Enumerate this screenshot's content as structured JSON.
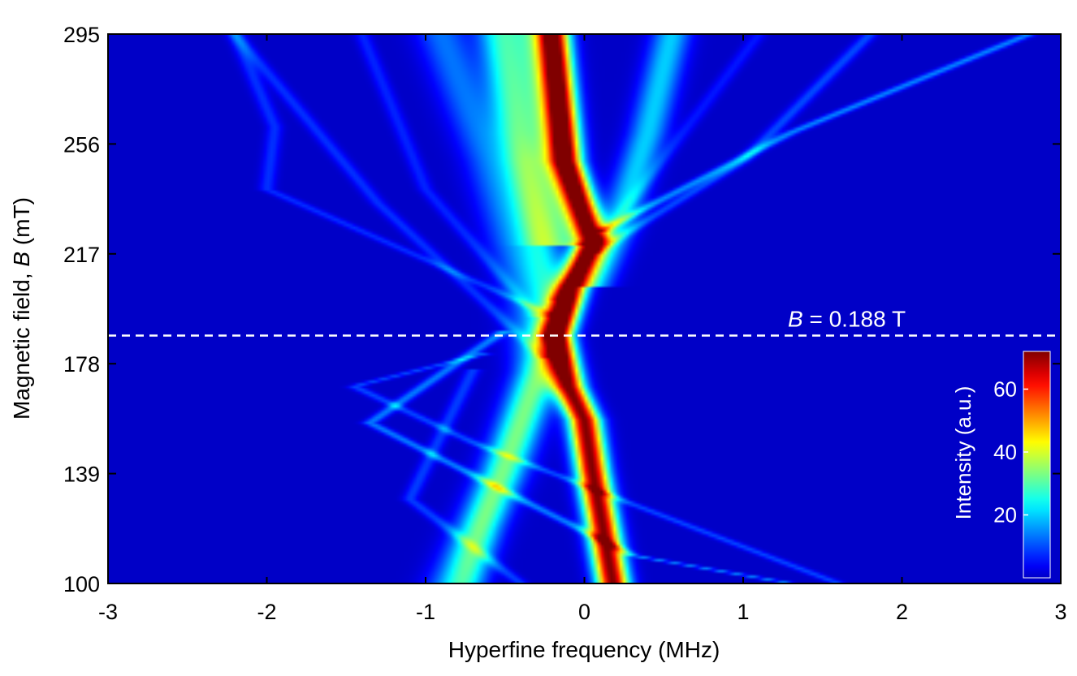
{
  "chart_data": {
    "type": "heatmap",
    "xlabel": "Hyperfine frequency (MHz)",
    "ylabel_prefix": "Magnetic field, ",
    "ylabel_var": "B",
    "ylabel_suffix": " (mT)",
    "xlim": [
      -3,
      3
    ],
    "ylim": [
      100,
      295
    ],
    "x_ticks": [
      -3,
      -2,
      -1,
      0,
      1,
      2,
      3
    ],
    "x_tick_labels": [
      "-3",
      "-2",
      "-1",
      "0",
      "1",
      "2",
      "3"
    ],
    "y_ticks": [
      100,
      139,
      178,
      217,
      256,
      295
    ],
    "y_tick_labels": [
      "100",
      "139",
      "178",
      "217",
      "256",
      "295"
    ],
    "colormap": "jet",
    "colorbar": {
      "label": "Intensity (a.u.)",
      "range": [
        0,
        72
      ],
      "ticks": [
        20,
        40,
        60
      ],
      "tick_labels": [
        "20",
        "40",
        "60"
      ]
    },
    "annotation": {
      "var": "B",
      "text": " = 0.188 T",
      "y_value": 188,
      "line_style": "dashed",
      "color": "#ffffff"
    },
    "background_color": "#00008f",
    "ridges": [
      {
        "points": [
          [
            -0.2,
            295
          ],
          [
            -0.12,
            250
          ],
          [
            0.05,
            222
          ],
          [
            -0.08,
            205
          ],
          [
            -0.18,
            188
          ],
          [
            -0.1,
            170
          ],
          [
            0.0,
            158
          ],
          [
            0.05,
            140
          ],
          [
            0.1,
            125
          ],
          [
            0.18,
            100
          ]
        ],
        "peak": 72,
        "width_mhz": 0.1
      },
      {
        "points": [
          [
            -0.55,
            295
          ],
          [
            -0.45,
            260
          ],
          [
            -0.3,
            225
          ],
          [
            -0.2,
            200
          ],
          [
            -0.25,
            180
          ],
          [
            -0.45,
            150
          ],
          [
            -0.65,
            120
          ],
          [
            -0.75,
            100
          ]
        ],
        "peak": 20,
        "width_mhz": 0.13
      },
      {
        "points": [
          [
            0.55,
            295
          ],
          [
            0.4,
            260
          ],
          [
            0.2,
            225
          ],
          [
            0.05,
            205
          ]
        ],
        "peak": 20,
        "width_mhz": 0.12
      },
      {
        "points": [
          [
            -0.35,
            295
          ],
          [
            -0.25,
            250
          ],
          [
            -0.15,
            220
          ]
        ],
        "peak": 24,
        "width_mhz": 0.18
      },
      {
        "points": [
          [
            -0.9,
            295
          ],
          [
            -0.6,
            250
          ],
          [
            -0.35,
            200
          ],
          [
            -0.3,
            175
          ],
          [
            -0.5,
            140
          ],
          [
            -0.85,
            100
          ]
        ],
        "peak": 13,
        "width_mhz": 0.16
      },
      {
        "points": [
          [
            0.1,
            225
          ],
          [
            1.3,
            260
          ],
          [
            2.8,
            295
          ]
        ],
        "peak": 15,
        "width_mhz": 0.05
      },
      {
        "points": [
          [
            0.05,
            217
          ],
          [
            1.0,
            250
          ],
          [
            1.8,
            295
          ]
        ],
        "peak": 10,
        "width_mhz": 0.05
      },
      {
        "points": [
          [
            -0.5,
            190
          ],
          [
            -1.35,
            157
          ],
          [
            0.3,
            110
          ],
          [
            1.3,
            100
          ]
        ],
        "peak": 14,
        "width_mhz": 0.05
      },
      {
        "points": [
          [
            -0.6,
            182
          ],
          [
            -1.45,
            170
          ],
          [
            -0.7,
            150
          ],
          [
            1.6,
            100
          ]
        ],
        "peak": 10,
        "width_mhz": 0.05
      },
      {
        "points": [
          [
            -0.7,
            176
          ],
          [
            -1.1,
            130
          ],
          [
            -0.4,
            100
          ]
        ],
        "peak": 9,
        "width_mhz": 0.05
      },
      {
        "points": [
          [
            -0.2,
            195
          ],
          [
            -2.0,
            240
          ],
          [
            -1.95,
            262
          ],
          [
            -2.2,
            295
          ]
        ],
        "peak": 8,
        "width_mhz": 0.05
      },
      {
        "points": [
          [
            -0.25,
            180
          ],
          [
            -1.3,
            235
          ],
          [
            -2.2,
            295
          ]
        ],
        "peak": 8,
        "width_mhz": 0.05
      },
      {
        "points": [
          [
            -0.3,
            195
          ],
          [
            -1.0,
            240
          ],
          [
            -1.4,
            295
          ]
        ],
        "peak": 7,
        "width_mhz": 0.05
      },
      {
        "points": [
          [
            -0.2,
            200
          ],
          [
            1.1,
            295
          ]
        ],
        "peak": 6,
        "width_mhz": 0.05
      }
    ]
  }
}
